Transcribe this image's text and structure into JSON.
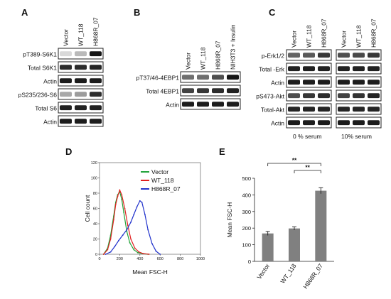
{
  "panels": [
    {
      "id": "A",
      "label": "A",
      "lanes": [
        "Vector",
        "WT_118",
        "H868R_07"
      ],
      "rows": [
        "pT389-S6K1",
        "Total S6K1",
        "Actin",
        "pS235/236-S6",
        "Total S6",
        "Actin"
      ],
      "band_intensity": [
        [
          0.08,
          0.22,
          0.95
        ],
        [
          0.85,
          0.85,
          0.88
        ],
        [
          0.92,
          0.92,
          0.92
        ],
        [
          0.3,
          0.35,
          0.85
        ],
        [
          0.9,
          0.9,
          0.9
        ],
        [
          0.92,
          0.92,
          0.92
        ]
      ]
    },
    {
      "id": "B",
      "label": "B",
      "lanes": [
        "Vector",
        "WT_118",
        "H868R_07",
        "NIH3T3 + Insulin"
      ],
      "rows": [
        "pT37/46-4EBP1",
        "Total 4EBP1",
        "Actin"
      ],
      "band_intensity": [
        [
          0.55,
          0.55,
          0.7,
          0.95
        ],
        [
          0.75,
          0.8,
          0.85,
          0.9
        ],
        [
          0.92,
          0.92,
          0.92,
          0.92
        ]
      ]
    },
    {
      "id": "C",
      "label": "C",
      "lanes": [
        "Vector",
        "WT_118",
        "H868R_07"
      ],
      "rows": [
        "p-Erk1/2",
        "Total -Erk",
        "Actin",
        "pS473-Akt",
        "Total-Akt",
        "Actin"
      ],
      "conditions": [
        "0 % serum",
        "10% serum"
      ],
      "band_intensity": [
        [
          [
            0.6,
            0.65,
            0.8
          ],
          [
            0.7,
            0.72,
            0.8
          ]
        ],
        [
          [
            0.9,
            0.9,
            0.9
          ],
          [
            0.9,
            0.9,
            0.9
          ]
        ],
        [
          [
            0.92,
            0.92,
            0.92
          ],
          [
            0.92,
            0.92,
            0.92
          ]
        ],
        [
          [
            0.7,
            0.8,
            0.85
          ],
          [
            0.75,
            0.82,
            0.88
          ]
        ],
        [
          [
            0.88,
            0.88,
            0.88
          ],
          [
            0.88,
            0.88,
            0.88
          ]
        ],
        [
          [
            0.92,
            0.92,
            0.92
          ],
          [
            0.92,
            0.92,
            0.92
          ]
        ]
      ]
    }
  ],
  "panel_D": {
    "label": "D",
    "chart_data": {
      "type": "line",
      "xlabel": "Mean FSC-H",
      "ylabel": "Cell count",
      "xlim": [
        0,
        1000
      ],
      "ylim": [
        0,
        120
      ],
      "xticks": [
        "0",
        "200",
        "400",
        "600",
        "800",
        "1000"
      ],
      "yticks": [
        "0",
        "20",
        "40",
        "60",
        "80",
        "100",
        "120"
      ],
      "legend_position": "top-right",
      "series": [
        {
          "name": "Vector",
          "color": "#22a33a",
          "x": [
            40,
            80,
            110,
            140,
            160,
            180,
            200,
            220,
            240,
            270,
            300,
            340,
            380,
            420,
            480
          ],
          "y": [
            0,
            8,
            25,
            50,
            68,
            78,
            82,
            72,
            55,
            30,
            15,
            6,
            2,
            1,
            0
          ]
        },
        {
          "name": "WT_118",
          "color": "#e02020",
          "x": [
            40,
            80,
            110,
            140,
            160,
            180,
            200,
            220,
            250,
            280,
            310,
            350,
            390,
            430,
            490
          ],
          "y": [
            0,
            6,
            20,
            45,
            65,
            76,
            84,
            78,
            60,
            38,
            20,
            8,
            3,
            1,
            0
          ]
        },
        {
          "name": "H868R_07",
          "color": "#2233cc",
          "x": [
            60,
            110,
            150,
            190,
            230,
            270,
            310,
            340,
            370,
            400,
            420,
            450,
            480,
            520,
            560,
            600
          ],
          "y": [
            0,
            3,
            10,
            18,
            25,
            32,
            42,
            52,
            62,
            70,
            68,
            52,
            32,
            14,
            4,
            0
          ]
        }
      ]
    }
  },
  "panel_E": {
    "label": "E",
    "chart_data": {
      "type": "bar",
      "categories": [
        "Vector",
        "WT_118",
        "H868R_07"
      ],
      "values": [
        168,
        198,
        425
      ],
      "errors": [
        12,
        10,
        18
      ],
      "ylabel": "Mean FSC-H",
      "ylim": [
        0,
        500
      ],
      "yticks": [
        "0",
        "100",
        "200",
        "300",
        "400",
        "500"
      ],
      "bar_color": "#808080",
      "significance": [
        {
          "from": 0,
          "to": 2,
          "label": "**"
        },
        {
          "from": 1,
          "to": 2,
          "label": "**"
        }
      ]
    }
  }
}
